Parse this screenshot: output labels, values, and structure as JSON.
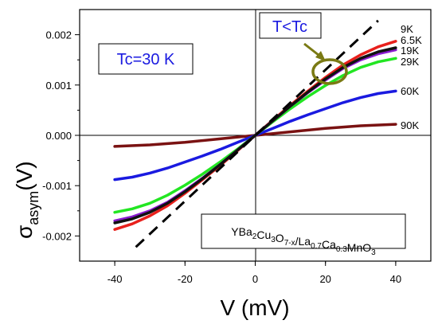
{
  "chart_data": {
    "type": "line",
    "xlabel": "V (mV)",
    "ylabel_main": "σ",
    "ylabel_sub": "asym",
    "ylabel_unit": "(V)",
    "xlim": [
      -50,
      50
    ],
    "ylim": [
      -0.0025,
      0.0025
    ],
    "x_ticks": [
      -40,
      -20,
      0,
      20,
      40
    ],
    "x_tick_labels": [
      "-40",
      "-20",
      "0",
      "20",
      "40"
    ],
    "y_ticks": [
      -0.002,
      -0.001,
      0.0,
      0.001,
      0.002
    ],
    "y_tick_labels": [
      "-0.002",
      "-0.001",
      "0.000",
      "0.001",
      "0.002"
    ],
    "grid": false,
    "zero_lines": true,
    "series": [
      {
        "name": "9K",
        "color": "#e8201c",
        "x": [
          -40,
          -35,
          -30,
          -25,
          -20,
          -15,
          -10,
          -5,
          0,
          5,
          10,
          15,
          20,
          25,
          30,
          35,
          40
        ],
        "y": [
          -0.00187,
          -0.00176,
          -0.0016,
          -0.0014,
          -0.00115,
          -0.00088,
          -0.0006,
          -0.0003,
          0.0,
          0.0003,
          0.0006,
          0.00088,
          0.00115,
          0.0014,
          0.0016,
          0.00176,
          0.00187
        ]
      },
      {
        "name": "6.5K",
        "color": "#111111",
        "x": [
          -40,
          -35,
          -30,
          -25,
          -20,
          -15,
          -10,
          -5,
          0,
          5,
          10,
          15,
          20,
          25,
          30,
          35,
          40
        ],
        "y": [
          -0.00174,
          -0.00166,
          -0.00153,
          -0.00135,
          -0.00112,
          -0.00086,
          -0.00058,
          -0.00029,
          0.0,
          0.00029,
          0.00058,
          0.00086,
          0.00112,
          0.00135,
          0.00153,
          0.00166,
          0.00174
        ]
      },
      {
        "name": "19K",
        "color": "#8a1ad0",
        "x": [
          -40,
          -35,
          -30,
          -25,
          -20,
          -15,
          -10,
          -5,
          0,
          5,
          10,
          15,
          20,
          25,
          30,
          35,
          40
        ],
        "y": [
          -0.0017,
          -0.00162,
          -0.0015,
          -0.00133,
          -0.0011,
          -0.00085,
          -0.00058,
          -0.00029,
          0.0,
          0.00029,
          0.00058,
          0.00085,
          0.0011,
          0.00133,
          0.0015,
          0.00162,
          0.0017
        ]
      },
      {
        "name": "29K",
        "color": "#22e622",
        "x": [
          -40,
          -35,
          -30,
          -25,
          -20,
          -15,
          -10,
          -5,
          0,
          5,
          10,
          15,
          20,
          25,
          30,
          35,
          40
        ],
        "y": [
          -0.00153,
          -0.00146,
          -0.00135,
          -0.00119,
          -0.00099,
          -0.00077,
          -0.00053,
          -0.00027,
          0.0,
          0.00027,
          0.00053,
          0.00077,
          0.00099,
          0.00119,
          0.00135,
          0.00146,
          0.00153
        ]
      },
      {
        "name": "60K",
        "color": "#1a1ae0",
        "x": [
          -40,
          -35,
          -30,
          -25,
          -20,
          -15,
          -10,
          -5,
          0,
          5,
          10,
          15,
          20,
          25,
          30,
          35,
          40
        ],
        "y": [
          -0.00088,
          -0.00083,
          -0.00075,
          -0.00065,
          -0.00053,
          -0.00041,
          -0.00028,
          -0.00014,
          0.0,
          0.00014,
          0.00028,
          0.00041,
          0.00053,
          0.00065,
          0.00075,
          0.00083,
          0.00088
        ]
      },
      {
        "name": "90K",
        "color": "#7a1212",
        "x": [
          -40,
          -30,
          -20,
          -10,
          0,
          10,
          20,
          30,
          40
        ],
        "y": [
          -0.00022,
          -0.00019,
          -0.00014,
          -7e-05,
          0.0,
          7e-05,
          0.00014,
          0.00019,
          0.00022
        ]
      }
    ],
    "dashed_line": {
      "color": "#000000",
      "x": [
        -34,
        35
      ],
      "y": [
        -0.00222,
        0.00228
      ]
    },
    "annotations": {
      "tc_label": "Tc=30 K",
      "tlt_label": "T<Tc",
      "sample_label": {
        "parts": [
          {
            "t": "YBa",
            "s": null
          },
          {
            "t": "2",
            "s": "sub"
          },
          {
            "t": "Cu",
            "s": null
          },
          {
            "t": "3",
            "s": "sub"
          },
          {
            "t": "O",
            "s": null
          },
          {
            "t": "7-x",
            "s": "sub"
          },
          {
            "t": "/La",
            "s": null
          },
          {
            "t": "0.7",
            "s": "sub"
          },
          {
            "t": "Ca",
            "s": null
          },
          {
            "t": "0.3",
            "s": "sub"
          },
          {
            "t": "MnO",
            "s": null
          },
          {
            "t": "3",
            "s": "sub"
          }
        ]
      },
      "accent_blue": "#1a1ae0",
      "marker_color": "#7a7a14"
    }
  }
}
